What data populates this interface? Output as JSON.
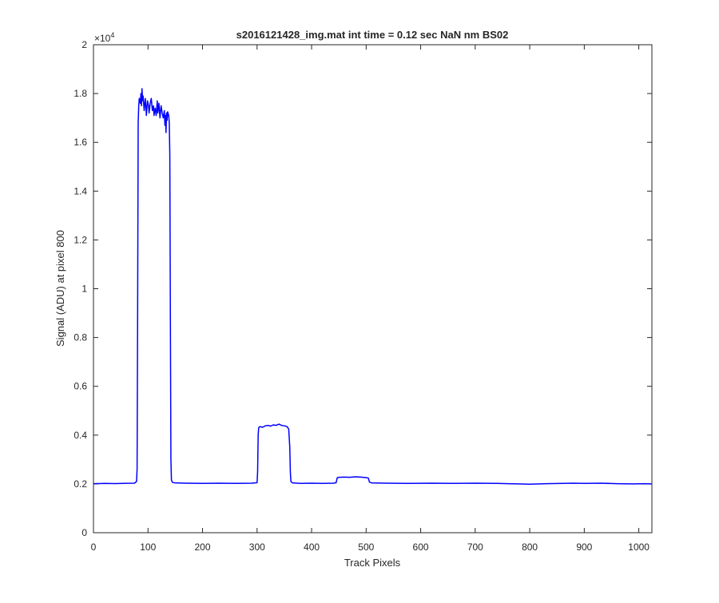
{
  "chart_data": {
    "type": "line",
    "title": "s2016121428_img.mat int time = 0.12 sec  NaN nm BS02",
    "xlabel": "Track Pixels",
    "ylabel": "Signal (ADU) at pixel 800",
    "xlim": [
      0,
      1024
    ],
    "ylim": [
      0,
      20000
    ],
    "y_exponent_label": "×10",
    "y_exponent_power": "4",
    "x_ticks": [
      0,
      100,
      200,
      300,
      400,
      500,
      600,
      700,
      800,
      900,
      1000
    ],
    "x_tick_labels": [
      "0",
      "100",
      "200",
      "300",
      "400",
      "500",
      "600",
      "700",
      "800",
      "900",
      "1000"
    ],
    "y_ticks": [
      0,
      2000,
      4000,
      6000,
      8000,
      10000,
      12000,
      14000,
      16000,
      18000,
      20000
    ],
    "y_tick_labels": [
      "0",
      "0.2",
      "0.4",
      "0.6",
      "0.8",
      "1",
      "1.2",
      "1.4",
      "1.6",
      "1.8",
      "2"
    ],
    "grid": false,
    "line_color": "#0000ff",
    "series": [
      {
        "values": [
          [
            0,
            2010
          ],
          [
            20,
            2020
          ],
          [
            40,
            2015
          ],
          [
            60,
            2025
          ],
          [
            75,
            2030
          ],
          [
            79,
            2100
          ],
          [
            80,
            2600
          ],
          [
            81,
            9000
          ],
          [
            82,
            16800
          ],
          [
            83,
            17500
          ],
          [
            84,
            17800
          ],
          [
            86,
            17600
          ],
          [
            87,
            18000
          ],
          [
            88,
            17500
          ],
          [
            89,
            18200
          ],
          [
            90,
            17700
          ],
          [
            91,
            17900
          ],
          [
            93,
            17300
          ],
          [
            95,
            17800
          ],
          [
            96,
            17500
          ],
          [
            97,
            17100
          ],
          [
            99,
            17700
          ],
          [
            101,
            17500
          ],
          [
            102,
            17200
          ],
          [
            104,
            17600
          ],
          [
            106,
            17800
          ],
          [
            108,
            17300
          ],
          [
            110,
            17500
          ],
          [
            111,
            17100
          ],
          [
            113,
            17400
          ],
          [
            115,
            17100
          ],
          [
            117,
            17700
          ],
          [
            118,
            17200
          ],
          [
            120,
            17600
          ],
          [
            122,
            17000
          ],
          [
            124,
            17500
          ],
          [
            126,
            17200
          ],
          [
            128,
            17000
          ],
          [
            130,
            17300
          ],
          [
            131,
            16700
          ],
          [
            132,
            17100
          ],
          [
            133,
            16400
          ],
          [
            134,
            17200
          ],
          [
            135,
            16900
          ],
          [
            136,
            17250
          ],
          [
            138,
            17100
          ],
          [
            139,
            16800
          ],
          [
            140,
            15500
          ],
          [
            141,
            9000
          ],
          [
            142,
            3000
          ],
          [
            143,
            2150
          ],
          [
            145,
            2060
          ],
          [
            150,
            2040
          ],
          [
            170,
            2030
          ],
          [
            200,
            2020
          ],
          [
            230,
            2030
          ],
          [
            260,
            2020
          ],
          [
            290,
            2030
          ],
          [
            300,
            2050
          ],
          [
            301,
            2500
          ],
          [
            302,
            4000
          ],
          [
            303,
            4300
          ],
          [
            305,
            4350
          ],
          [
            310,
            4320
          ],
          [
            315,
            4380
          ],
          [
            320,
            4400
          ],
          [
            325,
            4370
          ],
          [
            330,
            4420
          ],
          [
            335,
            4400
          ],
          [
            340,
            4450
          ],
          [
            345,
            4400
          ],
          [
            350,
            4380
          ],
          [
            355,
            4350
          ],
          [
            358,
            4250
          ],
          [
            360,
            3500
          ],
          [
            361,
            2500
          ],
          [
            362,
            2100
          ],
          [
            365,
            2040
          ],
          [
            380,
            2020
          ],
          [
            400,
            2030
          ],
          [
            420,
            2020
          ],
          [
            440,
            2030
          ],
          [
            445,
            2050
          ],
          [
            447,
            2250
          ],
          [
            450,
            2270
          ],
          [
            460,
            2280
          ],
          [
            470,
            2270
          ],
          [
            480,
            2290
          ],
          [
            490,
            2280
          ],
          [
            500,
            2260
          ],
          [
            504,
            2240
          ],
          [
            506,
            2080
          ],
          [
            510,
            2040
          ],
          [
            540,
            2030
          ],
          [
            580,
            2020
          ],
          [
            620,
            2030
          ],
          [
            660,
            2020
          ],
          [
            700,
            2030
          ],
          [
            740,
            2020
          ],
          [
            780,
            2000
          ],
          [
            800,
            1990
          ],
          [
            830,
            2010
          ],
          [
            860,
            2020
          ],
          [
            880,
            2030
          ],
          [
            900,
            2020
          ],
          [
            930,
            2030
          ],
          [
            960,
            2010
          ],
          [
            990,
            2000
          ],
          [
            1010,
            2010
          ],
          [
            1024,
            2000
          ]
        ]
      }
    ]
  }
}
